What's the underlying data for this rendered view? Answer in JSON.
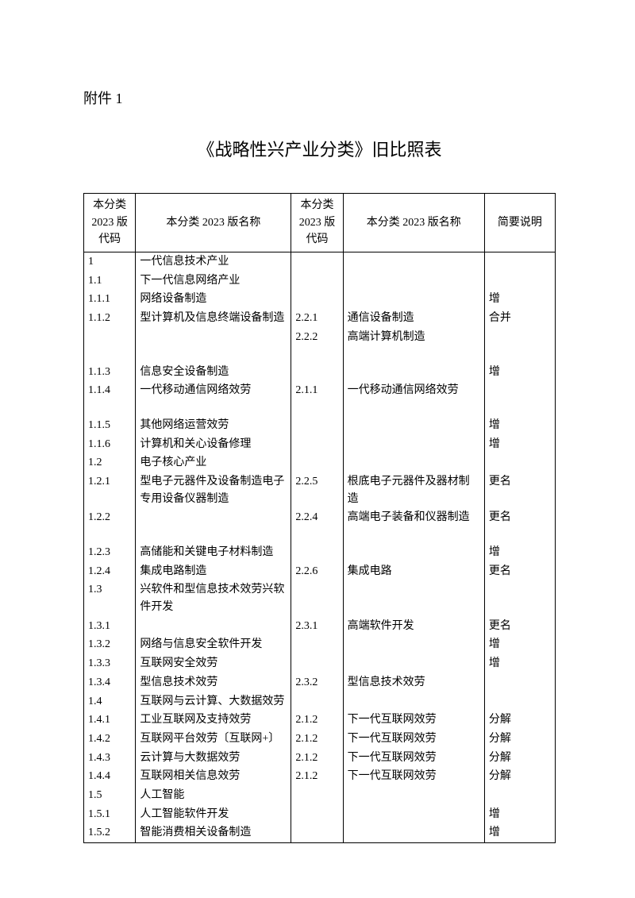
{
  "attachment_label": "附件 1",
  "title": "《战略性兴产业分类》旧比照表",
  "headers": {
    "code1": "本分类 2023 版代码",
    "name1": "本分类 2023 版名称",
    "code2": "本分类 2023 版代码",
    "name2": "本分类 2023 版名称",
    "note": "简要说明"
  },
  "rows": [
    {
      "code1": "1",
      "name1": "一代信息技术产业",
      "code2": "",
      "name2": "",
      "note": ""
    },
    {
      "code1": "1.1",
      "name1": "下一代信息网络产业",
      "code2": "",
      "name2": "",
      "note": ""
    },
    {
      "code1": "1.1.1",
      "name1": "网络设备制造",
      "code2": "",
      "name2": "",
      "note": "增"
    },
    {
      "code1": "1.1.2",
      "name1": "型计算机及信息终端设备制造",
      "code2": "2.2.1",
      "name2": "通信设备制造",
      "note": "合并"
    },
    {
      "code1": "",
      "name1": "",
      "code2": "2.2.2",
      "name2": "高端计算机制造",
      "note": ""
    },
    {
      "spacer": true
    },
    {
      "code1": "1.1.3",
      "name1": "信息安全设备制造",
      "code2": "",
      "name2": "",
      "note": "增"
    },
    {
      "code1": "1.1.4",
      "name1": "一代移动通信网络效劳",
      "code2": "2.1.1",
      "name2": "一代移动通信网络效劳",
      "note": ""
    },
    {
      "spacer": true
    },
    {
      "code1": "1.1.5",
      "name1": "其他网络运营效劳",
      "code2": "",
      "name2": "",
      "note": "增"
    },
    {
      "code1": "1.1.6",
      "name1": "计算机和关心设备修理",
      "code2": "",
      "name2": "",
      "note": "增"
    },
    {
      "code1": "1.2",
      "name1": "电子核心产业",
      "code2": "",
      "name2": "",
      "note": ""
    },
    {
      "code1": "1.2.1",
      "name1": "型电子元器件及设备制造电子专用设备仪器制造",
      "code2": "2.2.5",
      "name2": "根底电子元器件及器材制造",
      "note": "更名"
    },
    {
      "code1": "1.2.2",
      "name1": "",
      "code2": "2.2.4",
      "name2": "高端电子装备和仪器制造",
      "note": "更名"
    },
    {
      "spacer": true
    },
    {
      "code1": "1.2.3",
      "name1": "高储能和关键电子材料制造",
      "code2": "",
      "name2": "",
      "note": "增"
    },
    {
      "code1": "1.2.4",
      "name1": "集成电路制造",
      "code2": "2.2.6",
      "name2": "集成电路",
      "note": "更名"
    },
    {
      "code1": "1.3",
      "name1": "兴软件和型信息技术效劳兴软件开发",
      "code2": "",
      "name2": "",
      "note": ""
    },
    {
      "code1": "1.3.1",
      "name1": "",
      "code2": "2.3.1",
      "name2": "高端软件开发",
      "note": "更名"
    },
    {
      "code1": "1.3.2",
      "name1": "网络与信息安全软件开发",
      "code2": "",
      "name2": "",
      "note": "增"
    },
    {
      "code1": "1.3.3",
      "name1": "互联网安全效劳",
      "code2": "",
      "name2": "",
      "note": "增"
    },
    {
      "code1": "1.3.4",
      "name1": "型信息技术效劳",
      "code2": "2.3.2",
      "name2": "型信息技术效劳",
      "note": ""
    },
    {
      "code1": "1.4",
      "name1": "互联网与云计算、大数据效劳",
      "code2": "",
      "name2": "",
      "note": ""
    },
    {
      "code1": "1.4.1",
      "name1": "工业互联网及支持效劳",
      "code2": "2.1.2",
      "name2": "下一代互联网效劳",
      "note": "分解"
    },
    {
      "code1": "1.4.2",
      "name1": "互联网平台效劳〔互联网+〕",
      "code2": "2.1.2",
      "name2": "下一代互联网效劳",
      "note": "分解"
    },
    {
      "code1": "1.4.3",
      "name1": "云计算与大数据效劳",
      "code2": "2.1.2",
      "name2": "下一代互联网效劳",
      "note": "分解"
    },
    {
      "code1": "1.4.4",
      "name1": "互联网相关信息效劳",
      "code2": "2.1.2",
      "name2": "下一代互联网效劳",
      "note": "分解"
    },
    {
      "code1": "1.5",
      "name1": "人工智能",
      "code2": "",
      "name2": "",
      "note": ""
    },
    {
      "code1": "1.5.1",
      "name1": "人工智能软件开发",
      "code2": "",
      "name2": "",
      "note": "增"
    },
    {
      "code1": "1.5.2",
      "name1": "智能消费相关设备制造",
      "code2": "",
      "name2": "",
      "note": "增"
    }
  ]
}
